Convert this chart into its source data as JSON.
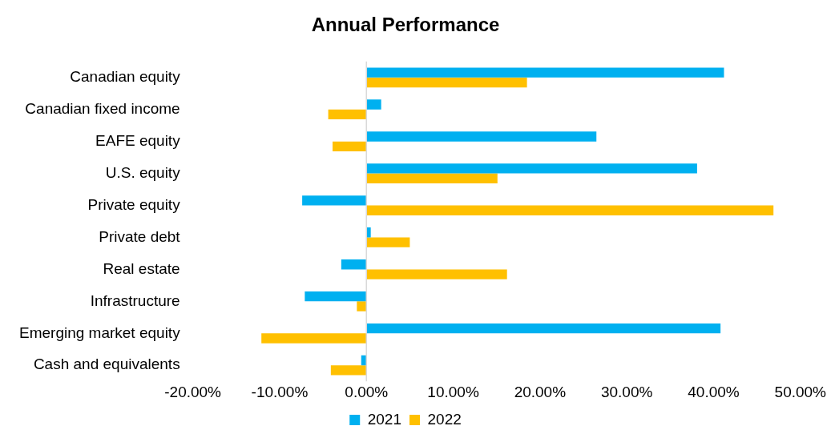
{
  "chart_data": {
    "type": "bar",
    "orientation": "horizontal",
    "title": "Annual Performance",
    "categories": [
      "Canadian equity",
      "Canadian fixed income",
      "EAFE equity",
      "U.S. equity",
      "Private equity",
      "Private debt",
      "Real estate",
      "Infrastructure",
      "Emerging market equity",
      "Cash and equivalents"
    ],
    "series": [
      {
        "name": "2021",
        "color": "#00b0f0",
        "values": [
          41.2,
          1.7,
          26.5,
          38.1,
          -7.4,
          0.5,
          -2.9,
          -7.1,
          40.8,
          -0.6
        ]
      },
      {
        "name": "2022",
        "color": "#ffc000",
        "values": [
          18.5,
          -4.4,
          -3.9,
          15.1,
          46.9,
          5.0,
          16.2,
          -1.1,
          -12.1,
          -4.1
        ]
      }
    ],
    "xlim": [
      -20,
      50
    ],
    "xticks": [
      {
        "value": -20,
        "label": "-20.00%"
      },
      {
        "value": -10,
        "label": "-10.00%"
      },
      {
        "value": 0,
        "label": "0.00%"
      },
      {
        "value": 10,
        "label": "10.00%"
      },
      {
        "value": 20,
        "label": "20.00%"
      },
      {
        "value": 30,
        "label": "30.00%"
      },
      {
        "value": 40,
        "label": "40.00%"
      },
      {
        "value": 50,
        "label": "50.00%"
      }
    ],
    "ref_lines": [
      {
        "axis": "x",
        "value": 0,
        "color": "#d9d9d9"
      }
    ],
    "grid": false,
    "legend": "bottom"
  }
}
